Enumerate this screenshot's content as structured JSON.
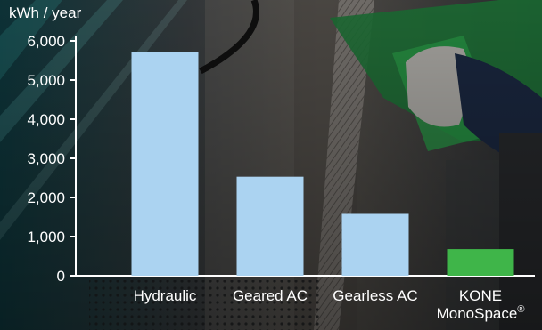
{
  "chart_data": {
    "type": "bar",
    "title": "",
    "ylabel": "kWh / year",
    "xlabel": "",
    "ylim": [
      0,
      6000
    ],
    "yticks": [
      0,
      1000,
      2000,
      3000,
      4000,
      5000,
      6000
    ],
    "ytick_labels": [
      "0",
      "1,000",
      "2,000",
      "3,000",
      "4,000",
      "5,000",
      "6,000"
    ],
    "categories": [
      {
        "lines": [
          "Hydraulic"
        ],
        "superscript": ""
      },
      {
        "lines": [
          "Geared AC"
        ],
        "superscript": ""
      },
      {
        "lines": [
          "Gearless AC"
        ],
        "superscript": ""
      },
      {
        "lines": [
          "KONE",
          "MonoSpace"
        ],
        "superscript": "®"
      }
    ],
    "values": [
      5720,
      2530,
      1580,
      680
    ],
    "colors": [
      "#abd3f1",
      "#abd3f1",
      "#abd3f1",
      "#3fb549"
    ]
  },
  "colors": {
    "axis": "#ffffff",
    "text": "#ffffff"
  }
}
